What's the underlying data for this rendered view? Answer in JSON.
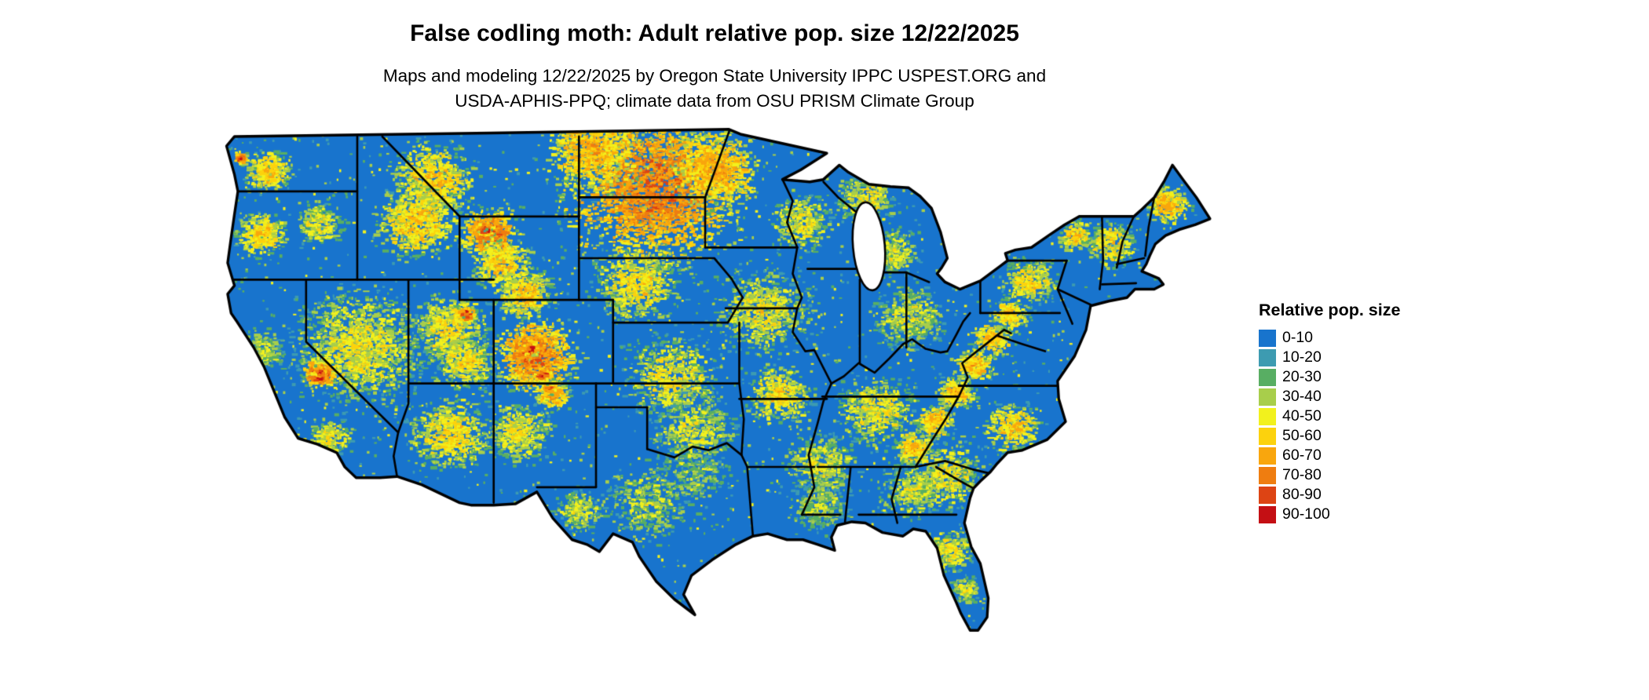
{
  "header": {
    "title": "False codling moth: Adult relative pop. size 12/22/2025",
    "subtitle_line1": "Maps and modeling 12/22/2025 by Oregon State University IPPC USPEST.ORG and",
    "subtitle_line2": "USDA-APHIS-PPQ; climate data from OSU PRISM Climate Group"
  },
  "legend": {
    "title": "Relative pop. size",
    "items": [
      {
        "label": "0-10",
        "color": "#1874CD"
      },
      {
        "label": "10-20",
        "color": "#3D9BB1"
      },
      {
        "label": "20-30",
        "color": "#58AE63"
      },
      {
        "label": "30-40",
        "color": "#A8CE4B"
      },
      {
        "label": "40-50",
        "color": "#F2F11D"
      },
      {
        "label": "50-60",
        "color": "#FCD20D"
      },
      {
        "label": "60-70",
        "color": "#F9A60D"
      },
      {
        "label": "70-80",
        "color": "#EF7D10"
      },
      {
        "label": "80-90",
        "color": "#DD4414"
      },
      {
        "label": "90-100",
        "color": "#C40F14"
      }
    ]
  },
  "map": {
    "region_label": "Continental United States",
    "base_color": "#1874CD",
    "border_color": "#000000",
    "water_color": "#FFFFFF"
  }
}
